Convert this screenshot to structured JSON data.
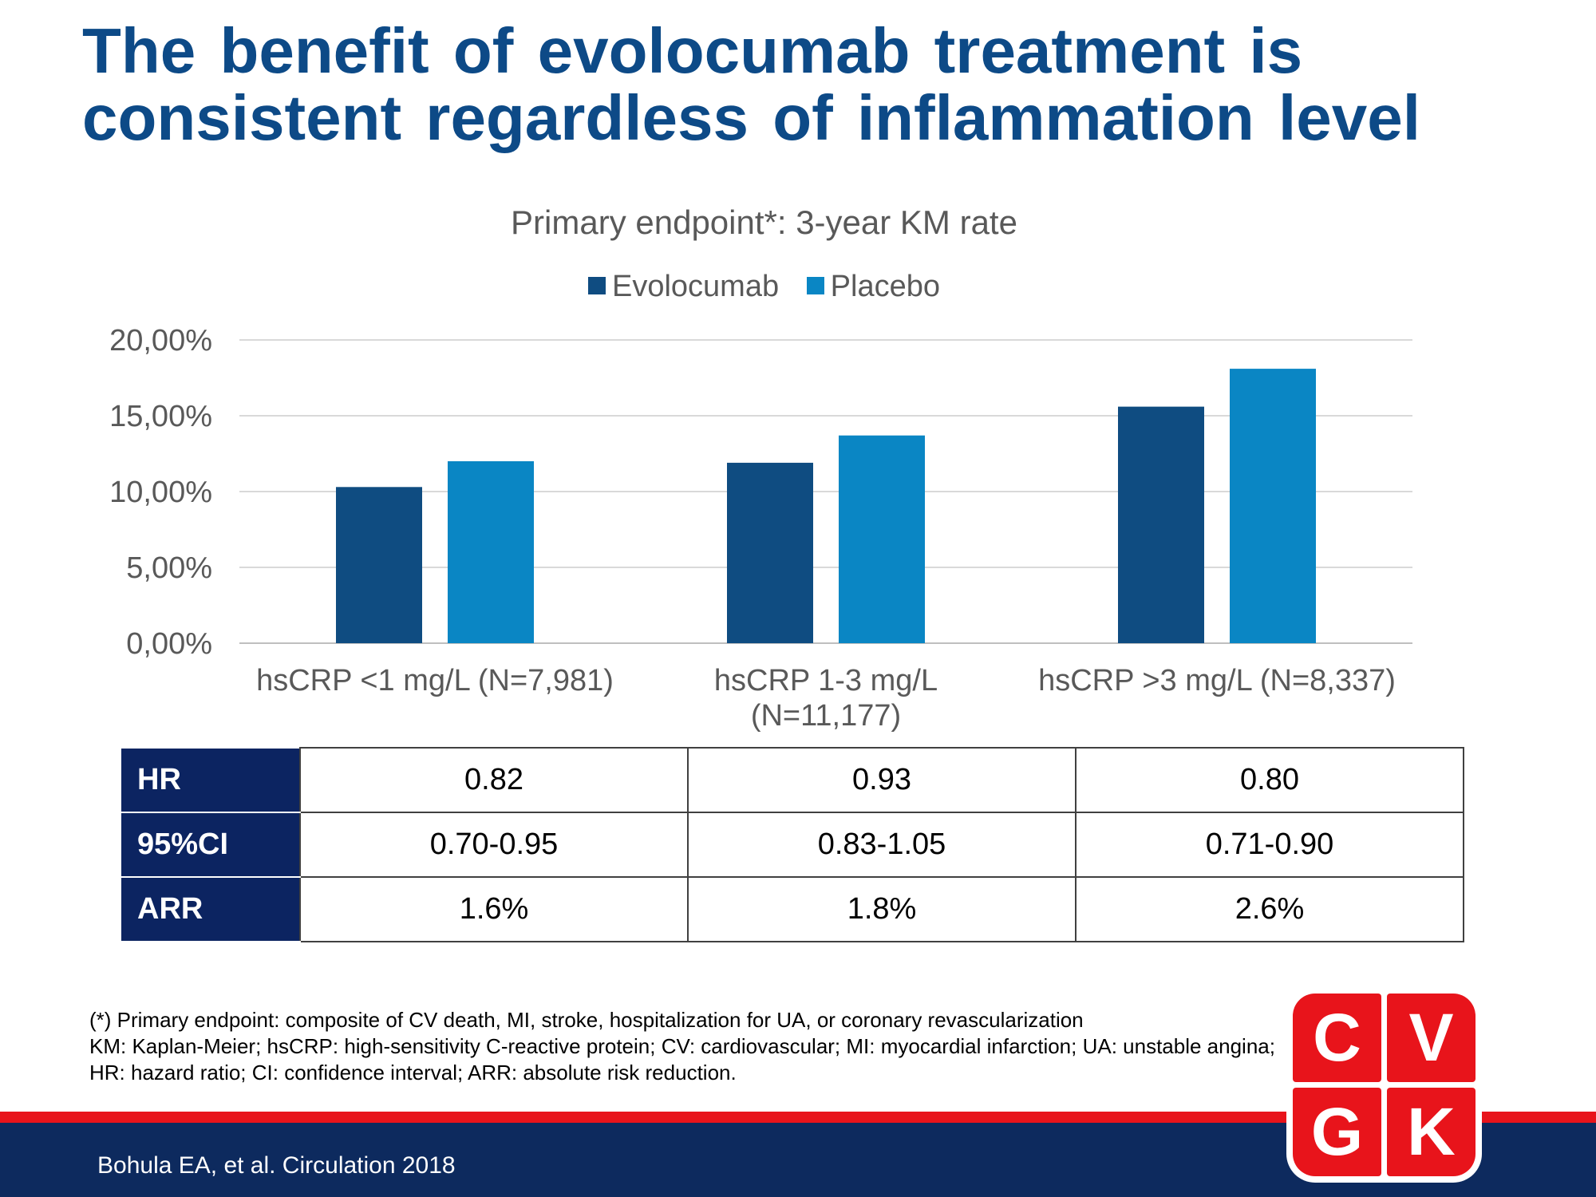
{
  "slide": {
    "title_line1": "The benefit of evolocumab treatment is",
    "title_line2": "consistent regardless of inflammation level"
  },
  "chart_data": {
    "type": "bar",
    "title": "Primary endpoint*: 3-year KM rate",
    "categories": [
      [
        "hsCRP <1 mg/L (N=7,981)"
      ],
      [
        "hsCRP 1-3 mg/L",
        "(N=11,177)"
      ],
      [
        "hsCRP >3 mg/L (N=8,337)"
      ]
    ],
    "series": [
      {
        "name": "Evolocumab",
        "values": [
          10.3,
          11.9,
          15.6
        ],
        "color": "#0f4c81"
      },
      {
        "name": "Placebo",
        "values": [
          12.0,
          13.7,
          18.1
        ],
        "color": "#0a86c4"
      }
    ],
    "ylim": [
      0,
      20
    ],
    "yticks": [
      "0,00%",
      "5,00%",
      "10,00%",
      "15,00%",
      "20,00%"
    ],
    "grid": true,
    "legend_position": "top"
  },
  "table": {
    "rows": [
      {
        "label": "HR",
        "values": [
          "0.82",
          "0.93",
          "0.80"
        ]
      },
      {
        "label": "95%CI",
        "values": [
          "0.70-0.95",
          "0.83-1.05",
          "0.71-0.90"
        ]
      },
      {
        "label": "ARR",
        "values": [
          "1.6%",
          "1.8%",
          "2.6%"
        ]
      }
    ]
  },
  "footnotes": [
    "(*) Primary endpoint: composite of CV death, MI, stroke, hospitalization for UA, or coronary revascularization",
    "KM: Kaplan-Meier; hsCRP: high-sensitivity C-reactive protein; CV: cardiovascular; MI: myocardial infarction; UA: unstable angina;",
    "HR: hazard ratio; CI: confidence interval; ARR: absolute risk reduction."
  ],
  "footer": {
    "citation": "Bohula EA, et al. Circulation 2018"
  },
  "logo": {
    "letters": [
      "C",
      "V",
      "G",
      "K"
    ],
    "color": "#e8141b"
  }
}
